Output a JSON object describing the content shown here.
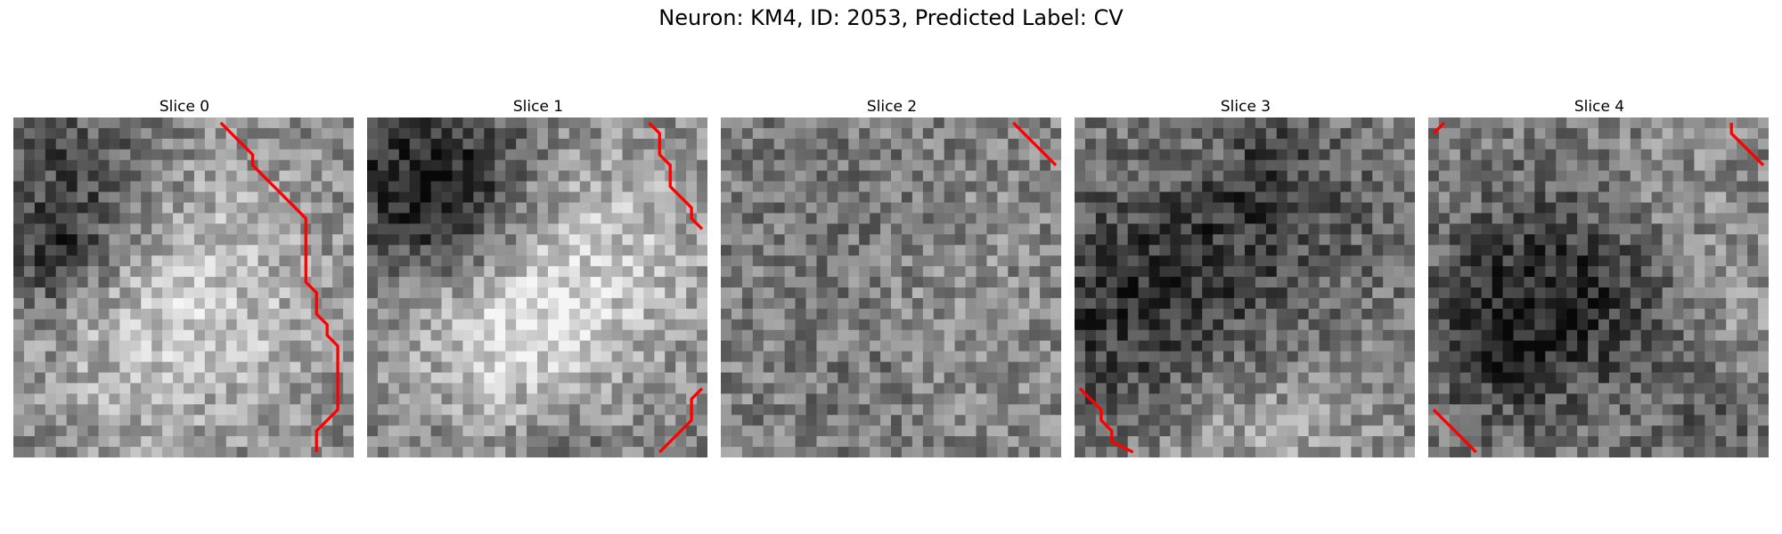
{
  "title": "Neuron: KM4, ID: 2053, Predicted Label: CV",
  "slices": [
    {
      "label": "Slice 0"
    },
    {
      "label": "Slice 1"
    },
    {
      "label": "Slice 2"
    },
    {
      "label": "Slice 3"
    },
    {
      "label": "Slice 4"
    }
  ],
  "colors": {
    "contour": "#ff0000"
  }
}
